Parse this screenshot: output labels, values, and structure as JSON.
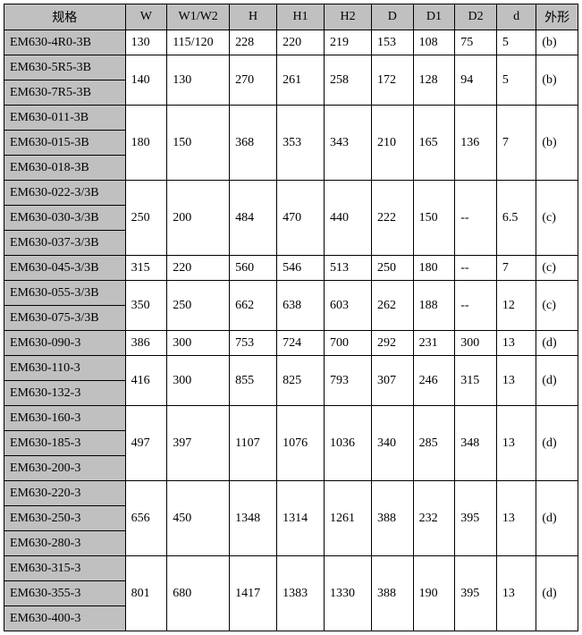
{
  "headers": [
    "规格",
    "W",
    "W1/W2",
    "H",
    "H1",
    "H2",
    "D",
    "D1",
    "D2",
    "d",
    "外形"
  ],
  "groups": [
    {
      "specs": [
        "EM630-4R0-3B"
      ],
      "vals": [
        "130",
        "115/120",
        "228",
        "220",
        "219",
        "153",
        "108",
        "75",
        "5",
        "(b)"
      ]
    },
    {
      "specs": [
        "EM630-5R5-3B",
        "EM630-7R5-3B"
      ],
      "vals": [
        "140",
        "130",
        "270",
        "261",
        "258",
        "172",
        "128",
        "94",
        "5",
        "(b)"
      ]
    },
    {
      "specs": [
        "EM630-011-3B",
        "EM630-015-3B",
        "EM630-018-3B"
      ],
      "vals": [
        "180",
        "150",
        "368",
        "353",
        "343",
        "210",
        "165",
        "136",
        "7",
        "(b)"
      ]
    },
    {
      "specs": [
        "EM630-022-3/3B",
        "EM630-030-3/3B",
        "EM630-037-3/3B"
      ],
      "vals": [
        "250",
        "200",
        "484",
        "470",
        "440",
        "222",
        "150",
        "--",
        "6.5",
        "(c)"
      ]
    },
    {
      "specs": [
        "EM630-045-3/3B"
      ],
      "vals": [
        "315",
        "220",
        "560",
        "546",
        "513",
        "250",
        "180",
        "--",
        "7",
        "(c)"
      ]
    },
    {
      "specs": [
        "EM630-055-3/3B",
        "EM630-075-3/3B"
      ],
      "vals": [
        "350",
        "250",
        "662",
        "638",
        "603",
        "262",
        "188",
        "--",
        "12",
        "(c)"
      ]
    },
    {
      "specs": [
        "EM630-090-3"
      ],
      "vals": [
        "386",
        "300",
        "753",
        "724",
        "700",
        "292",
        "231",
        "300",
        "13",
        "(d)"
      ]
    },
    {
      "specs": [
        "EM630-110-3",
        "EM630-132-3"
      ],
      "vals": [
        "416",
        "300",
        "855",
        "825",
        "793",
        "307",
        "246",
        "315",
        "13",
        "(d)"
      ]
    },
    {
      "specs": [
        "EM630-160-3",
        "EM630-185-3",
        "EM630-200-3"
      ],
      "vals": [
        "497",
        "397",
        "1107",
        "1076",
        "1036",
        "340",
        "285",
        "348",
        "13",
        "(d)"
      ]
    },
    {
      "specs": [
        "EM630-220-3",
        "EM630-250-3",
        "EM630-280-3"
      ],
      "vals": [
        "656",
        "450",
        "1348",
        "1314",
        "1261",
        "388",
        "232",
        "395",
        "13",
        "(d)"
      ]
    },
    {
      "specs": [
        "EM630-315-3",
        "EM630-355-3",
        "EM630-400-3"
      ],
      "vals": [
        "801",
        "680",
        "1417",
        "1383",
        "1330",
        "388",
        "190",
        "395",
        "13",
        "(d)"
      ]
    }
  ]
}
